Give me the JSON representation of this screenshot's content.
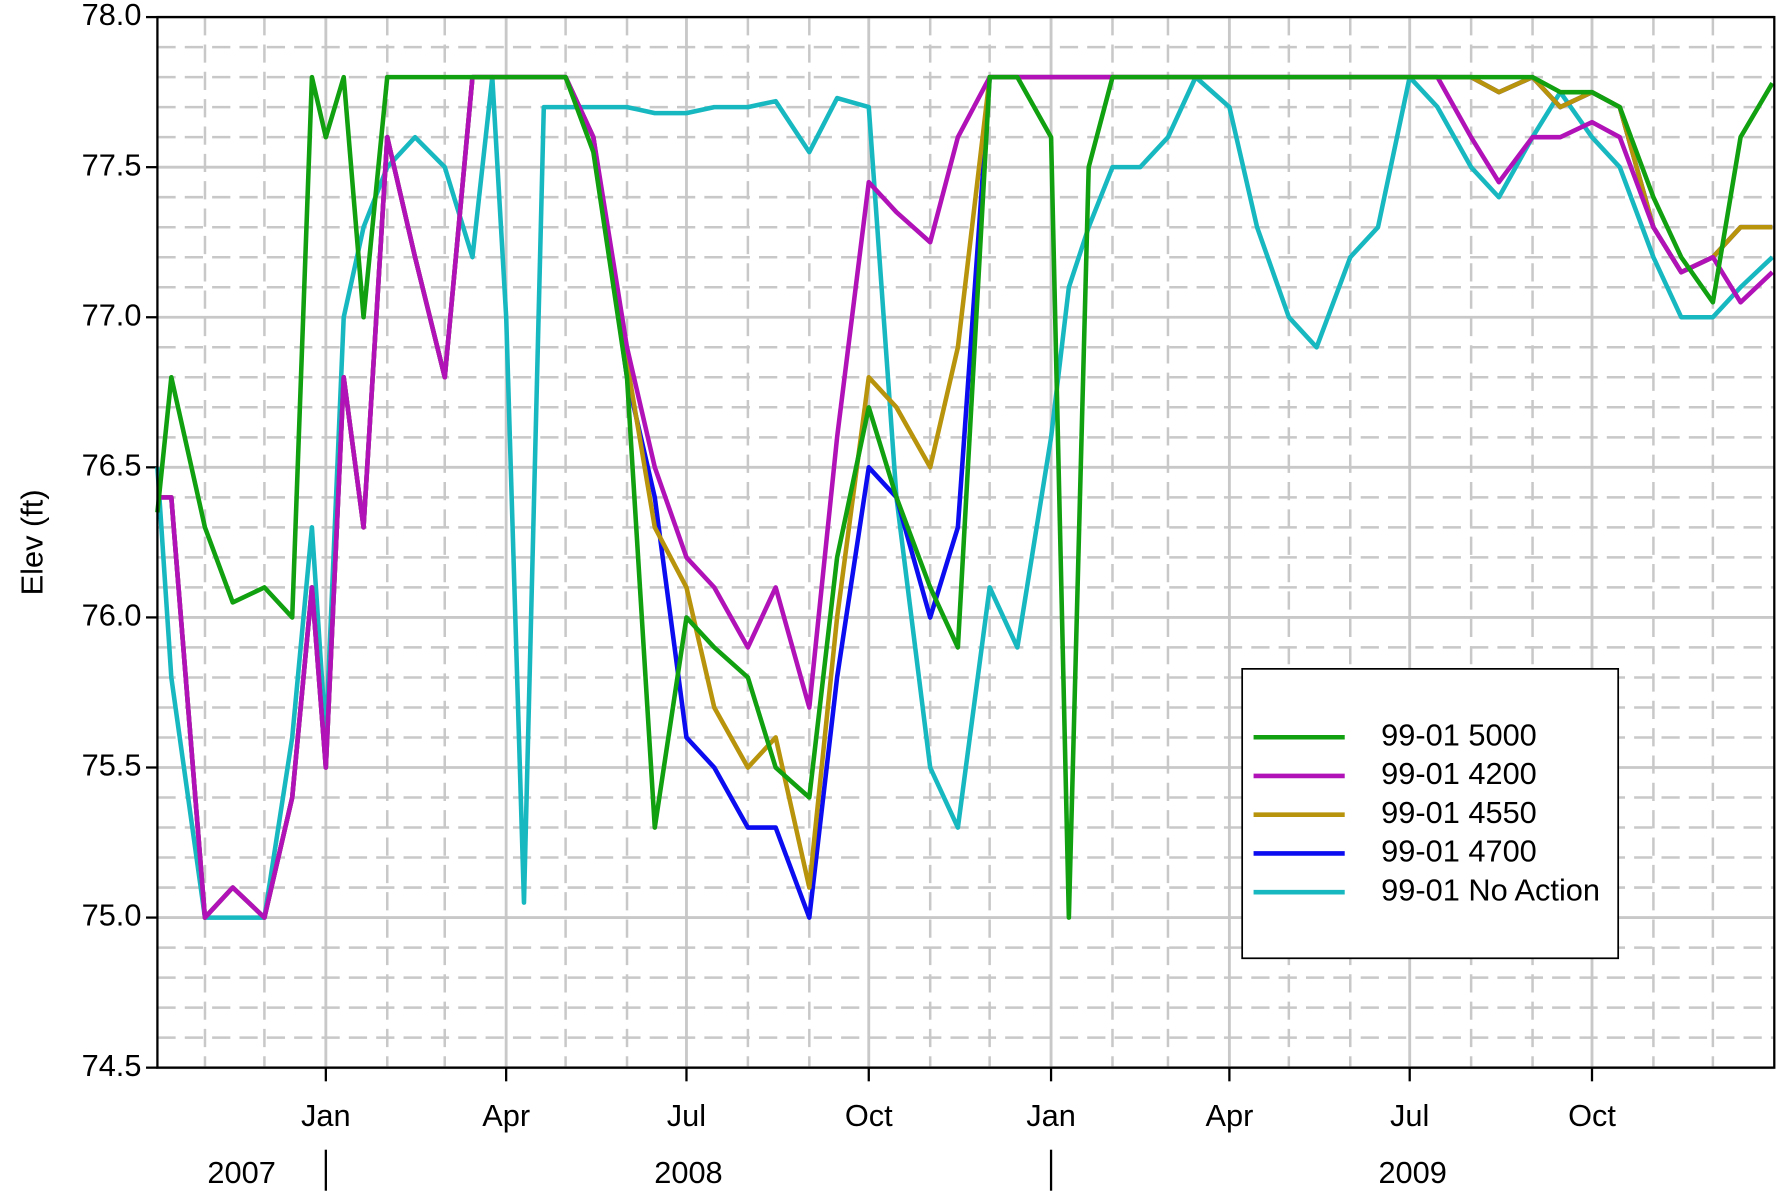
{
  "chart_data": {
    "type": "line",
    "y_label": "Elev (ft)",
    "x": [
      "2007-10-08",
      "2007-10-15",
      "2007-11-01",
      "2007-11-15",
      "2007-12-01",
      "2007-12-15",
      "2007-12-25",
      "2008-01-01",
      "2008-01-10",
      "2008-01-20",
      "2008-02-01",
      "2008-02-15",
      "2008-03-01",
      "2008-03-15",
      "2008-03-25",
      "2008-04-01",
      "2008-04-10",
      "2008-04-20",
      "2008-05-01",
      "2008-05-15",
      "2008-06-01",
      "2008-06-15",
      "2008-07-01",
      "2008-07-15",
      "2008-08-01",
      "2008-08-15",
      "2008-09-01",
      "2008-09-15",
      "2008-10-01",
      "2008-10-15",
      "2008-11-01",
      "2008-11-15",
      "2008-12-01",
      "2008-12-15",
      "2009-01-01",
      "2009-01-10",
      "2009-01-20",
      "2009-02-01",
      "2009-02-15",
      "2009-03-01",
      "2009-03-15",
      "2009-04-01",
      "2009-04-15",
      "2009-05-01",
      "2009-05-15",
      "2009-06-01",
      "2009-06-15",
      "2009-07-01",
      "2009-07-15",
      "2009-08-01",
      "2009-08-15",
      "2009-09-01",
      "2009-09-15",
      "2009-10-01",
      "2009-10-15",
      "2009-11-01",
      "2009-11-15",
      "2009-12-01",
      "2009-12-15",
      "2009-12-31"
    ],
    "series": [
      {
        "name": "99-01 5000",
        "color": "#10a010",
        "values": [
          76.35,
          76.8,
          76.3,
          76.05,
          76.1,
          76.0,
          77.8,
          77.6,
          77.8,
          77.0,
          77.8,
          77.8,
          77.8,
          77.8,
          77.8,
          77.8,
          77.8,
          77.8,
          77.8,
          77.55,
          76.8,
          75.3,
          76.0,
          75.9,
          75.8,
          75.5,
          75.4,
          76.2,
          76.7,
          76.4,
          76.1,
          75.9,
          77.8,
          77.8,
          77.6,
          75.0,
          77.5,
          77.8,
          77.8,
          77.8,
          77.8,
          77.8,
          77.8,
          77.8,
          77.8,
          77.8,
          77.8,
          77.8,
          77.8,
          77.8,
          77.8,
          77.8,
          77.75,
          77.75,
          77.7,
          77.4,
          77.2,
          77.05,
          77.6,
          77.78
        ]
      },
      {
        "name": "99-01 4200",
        "color": "#b012b8",
        "values": [
          76.4,
          76.4,
          75.0,
          75.1,
          75.0,
          75.4,
          76.1,
          75.5,
          76.8,
          76.3,
          77.6,
          77.2,
          76.8,
          77.8,
          77.8,
          77.8,
          77.8,
          77.8,
          77.8,
          77.6,
          76.9,
          76.5,
          76.2,
          76.1,
          75.9,
          76.1,
          75.7,
          76.6,
          77.45,
          77.35,
          77.25,
          77.6,
          77.8,
          77.8,
          77.8,
          77.8,
          77.8,
          77.8,
          77.8,
          77.8,
          77.8,
          77.8,
          77.8,
          77.8,
          77.8,
          77.8,
          77.8,
          77.8,
          77.8,
          77.6,
          77.45,
          77.6,
          77.6,
          77.65,
          77.6,
          77.3,
          77.15,
          77.2,
          77.05,
          77.15
        ]
      },
      {
        "name": "99-01 4550",
        "color": "#b8940c",
        "values": [
          76.4,
          76.4,
          75.0,
          75.1,
          75.0,
          75.4,
          76.1,
          75.5,
          76.8,
          76.3,
          77.6,
          77.2,
          76.8,
          77.8,
          77.8,
          77.8,
          77.8,
          77.8,
          77.8,
          77.6,
          76.85,
          76.3,
          76.1,
          75.7,
          75.5,
          75.6,
          75.1,
          76.0,
          76.8,
          76.7,
          76.5,
          76.9,
          77.8,
          77.8,
          77.8,
          77.8,
          77.8,
          77.8,
          77.8,
          77.8,
          77.8,
          77.8,
          77.8,
          77.8,
          77.8,
          77.8,
          77.8,
          77.8,
          77.8,
          77.8,
          77.75,
          77.8,
          77.7,
          77.75,
          77.7,
          77.3,
          77.15,
          77.2,
          77.3,
          77.3
        ]
      },
      {
        "name": "99-01 4700",
        "color": "#0c0cf0",
        "values": [
          76.4,
          76.4,
          75.0,
          75.1,
          75.0,
          75.4,
          76.1,
          75.5,
          76.8,
          76.3,
          77.6,
          77.2,
          76.8,
          77.8,
          77.8,
          77.8,
          77.8,
          77.8,
          77.8,
          77.6,
          76.8,
          76.4,
          75.6,
          75.5,
          75.3,
          75.3,
          75.0,
          75.8,
          76.5,
          76.4,
          76.0,
          76.3,
          77.8,
          77.8,
          77.8,
          77.8,
          77.8,
          77.8,
          77.8,
          77.8,
          77.8,
          77.8,
          77.8,
          77.8,
          77.8,
          77.8,
          77.8,
          77.8,
          77.8,
          77.8,
          77.75,
          77.8,
          77.7,
          77.75,
          77.7,
          77.3,
          77.15,
          77.2,
          77.3,
          77.3
        ]
      },
      {
        "name": "99-01 No Action",
        "color": "#18b8c0",
        "values": [
          76.5,
          75.8,
          75.0,
          75.0,
          75.0,
          75.6,
          76.3,
          75.6,
          77.0,
          77.3,
          77.5,
          77.6,
          77.5,
          77.2,
          77.8,
          77.0,
          75.05,
          77.7,
          77.7,
          77.7,
          77.7,
          77.68,
          77.68,
          77.7,
          77.7,
          77.72,
          77.55,
          77.73,
          77.7,
          76.4,
          75.5,
          75.3,
          76.1,
          75.9,
          76.6,
          77.1,
          77.3,
          77.5,
          77.5,
          77.6,
          77.8,
          77.7,
          77.3,
          77.0,
          76.9,
          77.2,
          77.3,
          77.8,
          77.7,
          77.5,
          77.4,
          77.6,
          77.75,
          77.6,
          77.5,
          77.2,
          77.0,
          77.0,
          77.1,
          77.2
        ]
      }
    ],
    "xlim": [
      "2007-10-08",
      "2010-01-01"
    ],
    "xticks": [
      {
        "value": "2008-01",
        "label": "Jan"
      },
      {
        "value": "2008-04",
        "label": "Apr"
      },
      {
        "value": "2008-07",
        "label": "Jul"
      },
      {
        "value": "2008-10",
        "label": "Oct"
      },
      {
        "value": "2009-01",
        "label": "Jan"
      },
      {
        "value": "2009-04",
        "label": "Apr"
      },
      {
        "value": "2009-07",
        "label": "Jul"
      },
      {
        "value": "2009-10",
        "label": "Oct"
      }
    ],
    "year_labels": [
      "2007",
      "2008",
      "2009"
    ],
    "ylim": [
      74.5,
      78
    ],
    "yticks": [
      74.5,
      {
        "value": 75,
        "label": "75.0"
      },
      75.5,
      {
        "value": 76,
        "label": "76.0"
      },
      76.5,
      {
        "value": 77,
        "label": "77.0"
      },
      77.5,
      {
        "value": 78,
        "label": "78.0"
      }
    ],
    "grid": true,
    "legend_loc": "lower right"
  }
}
